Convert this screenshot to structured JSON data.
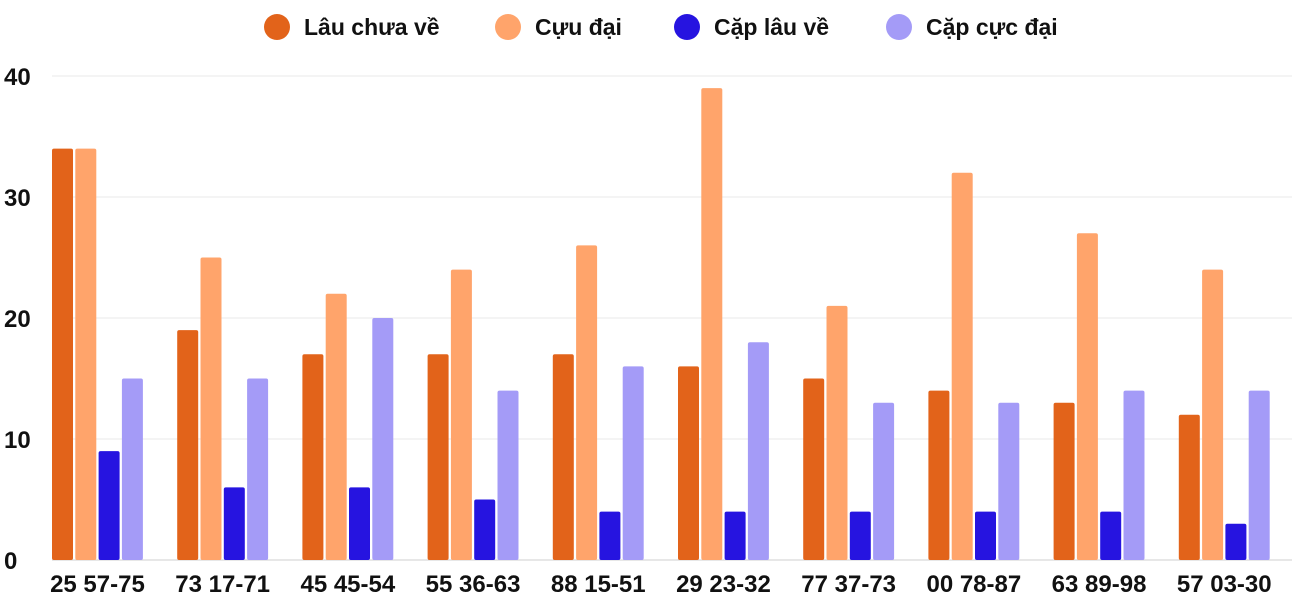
{
  "chart_data": {
    "type": "bar",
    "title": "",
    "xlabel": "",
    "ylabel": "",
    "ylim": [
      0,
      40
    ],
    "yticks": [
      0,
      10,
      20,
      30,
      40
    ],
    "grid": true,
    "legend_position": "top",
    "categories": [
      "25 57-75",
      "73 17-71",
      "45 45-54",
      "55 36-63",
      "88 15-51",
      "29 23-32",
      "77 37-73",
      "00 78-87",
      "63 89-98",
      "57 03-30"
    ],
    "series": [
      {
        "name": "Lâu chưa về",
        "color": "#e2631a",
        "values": [
          34,
          19,
          17,
          17,
          17,
          16,
          15,
          14,
          13,
          12
        ]
      },
      {
        "name": "Cựu đại",
        "color": "#ffa46b",
        "values": [
          34,
          25,
          22,
          24,
          26,
          39,
          21,
          32,
          27,
          24
        ]
      },
      {
        "name": "Cặp lâu về",
        "color": "#2614e0",
        "values": [
          9,
          6,
          6,
          5,
          4,
          4,
          4,
          4,
          4,
          3
        ]
      },
      {
        "name": "Cặp cực đại",
        "color": "#a49bf7",
        "values": [
          15,
          15,
          20,
          14,
          16,
          18,
          13,
          13,
          14,
          14
        ]
      }
    ]
  }
}
